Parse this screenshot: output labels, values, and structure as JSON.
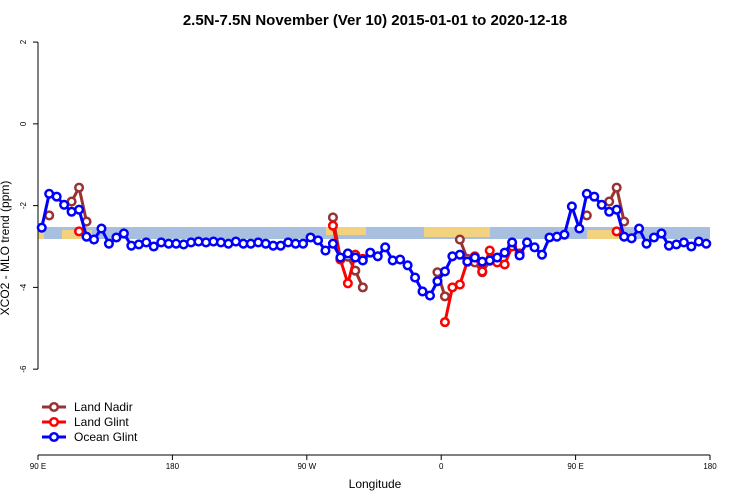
{
  "chart_data": {
    "type": "line",
    "title": "2.5N-7.5N November (Ver 10)   2015-01-01 to 2020-12-18",
    "x_label": "Longitude",
    "y_label": "XCO2 - MLO trend (ppm)",
    "xlim": [
      90,
      540
    ],
    "ylim": [
      -8.1,
      2.1
    ],
    "xticks": [
      {
        "value": 90,
        "label": "90 E"
      },
      {
        "value": 180,
        "label": "180"
      },
      {
        "value": 270,
        "label": "90 W"
      },
      {
        "value": 360,
        "label": "0"
      },
      {
        "value": 450,
        "label": "90 E"
      },
      {
        "value": 540,
        "label": "180"
      }
    ],
    "yticks": [
      2,
      0,
      -2,
      -4,
      -6
    ],
    "legend": "bottom-left",
    "series": [
      {
        "name": "Land Nadir",
        "color": "#993333",
        "x": [
          97.5,
          102.5,
          112.5,
          117.5,
          122.5,
          127.5,
          287.5,
          292.5,
          297.5,
          302.5,
          307.5,
          312.5,
          357.5,
          362.5,
          367.5,
          372.5,
          377.5,
          382.5,
          387.5,
          392.5,
          397.5,
          457.5,
          462.5,
          472.5,
          477.5,
          482.5
        ],
        "values": [
          -2.24,
          null,
          -1.9,
          -1.56,
          -2.39,
          null,
          -2.29,
          -3.3,
          -3.25,
          -3.59,
          -4.0,
          null,
          -3.63,
          -4.22,
          null,
          -2.83,
          -3.3,
          -3.39,
          -3.63,
          -3.35,
          null,
          -2.24,
          null,
          -1.9,
          -1.56,
          -2.39
        ]
      },
      {
        "name": "Land Glint",
        "color": "#ff0000",
        "x": [
          117.5,
          122.5,
          287.5,
          292.5,
          297.5,
          302.5,
          307.5,
          312.5,
          362.5,
          367.5,
          372.5,
          377.5,
          382.5,
          387.5,
          392.5,
          397.5,
          402.5,
          407.5,
          412.5,
          417.5,
          477.5
        ],
        "values": [
          -2.63,
          null,
          -2.49,
          -3.32,
          -3.9,
          -3.2,
          -3.3,
          null,
          -4.85,
          -4.0,
          -3.93,
          -3.37,
          -3.24,
          -3.61,
          -3.1,
          -3.39,
          -3.44,
          -3.0,
          -3.17,
          null,
          -2.63
        ]
      },
      {
        "name": "Ocean Glint",
        "color": "#0000ff",
        "x": [
          92.5,
          97.5,
          102.5,
          107.5,
          112.5,
          117.5,
          122.5,
          127.5,
          132.5,
          137.5,
          142.5,
          147.5,
          152.5,
          157.5,
          162.5,
          167.5,
          172.5,
          177.5,
          182.5,
          187.5,
          192.5,
          197.5,
          202.5,
          207.5,
          212.5,
          217.5,
          222.5,
          227.5,
          232.5,
          237.5,
          242.5,
          247.5,
          252.5,
          257.5,
          262.5,
          267.5,
          272.5,
          277.5,
          282.5,
          287.5,
          292.5,
          297.5,
          302.5,
          307.5,
          312.5,
          317.5,
          322.5,
          327.5,
          332.5,
          337.5,
          342.5,
          347.5,
          352.5,
          357.5,
          362.5,
          367.5,
          372.5,
          377.5,
          382.5,
          387.5,
          392.5,
          397.5,
          402.5,
          407.5,
          412.5,
          417.5,
          422.5,
          427.5,
          432.5,
          437.5,
          442.5,
          447.5,
          452.5,
          457.5,
          462.5,
          467.5,
          472.5,
          477.5,
          482.5,
          487.5,
          492.5,
          497.5,
          502.5,
          507.5,
          512.5,
          517.5,
          522.5,
          527.5,
          532.5,
          537.5
        ],
        "values": [
          -2.54,
          -1.71,
          -1.78,
          -1.98,
          -2.15,
          -2.1,
          -2.76,
          -2.83,
          -2.56,
          -2.93,
          -2.78,
          -2.68,
          -2.98,
          -2.95,
          -2.9,
          -3.0,
          -2.9,
          -2.93,
          -2.93,
          -2.95,
          -2.9,
          -2.88,
          -2.9,
          -2.88,
          -2.9,
          -2.93,
          -2.88,
          -2.93,
          -2.93,
          -2.9,
          -2.93,
          -2.98,
          -2.98,
          -2.9,
          -2.93,
          -2.93,
          -2.78,
          -2.85,
          -3.1,
          -2.93,
          -3.27,
          -3.17,
          -3.27,
          -3.34,
          -3.15,
          -3.24,
          -3.02,
          -3.34,
          -3.32,
          -3.46,
          -3.76,
          -4.1,
          -4.2,
          -3.85,
          -3.61,
          -3.24,
          -3.2,
          -3.37,
          -3.27,
          -3.37,
          -3.34,
          -3.27,
          -3.15,
          -2.9,
          -3.22,
          -2.9,
          -3.02,
          -3.2,
          -2.78,
          -2.76,
          -2.71,
          -2.02,
          -2.56,
          -1.71,
          -1.78,
          -1.98,
          -2.15,
          -2.1,
          -2.76,
          -2.8,
          -2.56,
          -2.93,
          -2.78,
          -2.68,
          -2.98,
          -2.95,
          -2.9,
          -3.0,
          -2.88,
          -2.93
        ]
      }
    ]
  }
}
